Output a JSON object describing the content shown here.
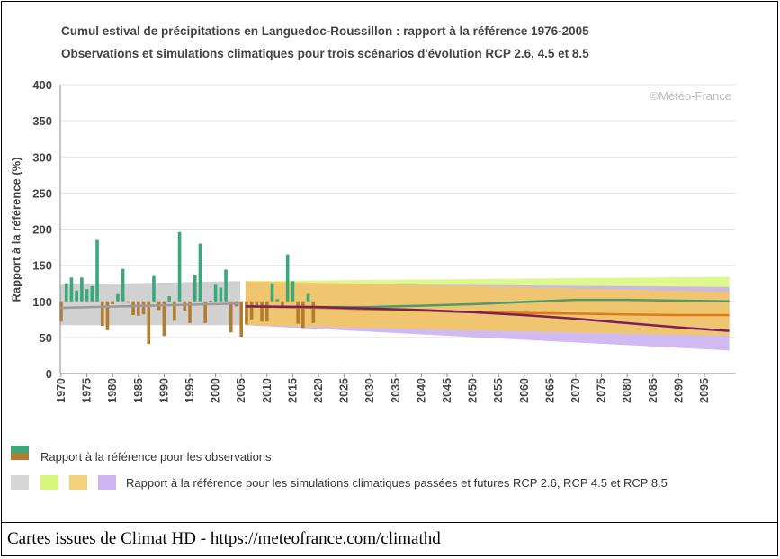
{
  "chart_data": {
    "type": "bar",
    "title": "Cumul estival de précipitations en Languedoc-Roussillon : rapport à la référence 1976-2005",
    "subtitle": "Observations et simulations climatiques pour trois scénarios d'évolution RCP 2.6, 4.5 et 8.5",
    "ylabel": "Rapport à la référence (%)",
    "ylim": [
      0,
      400
    ],
    "yticks": [
      0,
      50,
      100,
      150,
      200,
      250,
      300,
      350,
      400
    ],
    "xlim": [
      1970,
      2100
    ],
    "xticks": [
      1970,
      1975,
      1980,
      1985,
      1990,
      1995,
      2000,
      2005,
      2010,
      2015,
      2020,
      2025,
      2030,
      2035,
      2040,
      2045,
      2050,
      2055,
      2060,
      2065,
      2070,
      2075,
      2080,
      2085,
      2090,
      2095
    ],
    "baseline": 100,
    "grid": true,
    "watermark": "©Météo-France",
    "observations": {
      "name": "Rapport à la référence pour les observations",
      "color_above": "#3aa97a",
      "color_below": "#b27c2e",
      "years": [
        1970,
        1971,
        1972,
        1973,
        1974,
        1975,
        1976,
        1977,
        1978,
        1979,
        1980,
        1981,
        1982,
        1983,
        1984,
        1985,
        1986,
        1987,
        1988,
        1989,
        1990,
        1991,
        1992,
        1993,
        1994,
        1995,
        1996,
        1997,
        1998,
        1999,
        2000,
        2001,
        2002,
        2003,
        2004,
        2005,
        2006,
        2007,
        2008,
        2009,
        2010,
        2011,
        2012,
        2013,
        2014,
        2015,
        2016,
        2017,
        2018,
        2019
      ],
      "values": [
        72,
        125,
        133,
        115,
        133,
        117,
        121,
        185,
        66,
        60,
        96,
        110,
        145,
        98,
        81,
        80,
        82,
        41,
        135,
        88,
        52,
        107,
        73,
        196,
        87,
        70,
        137,
        180,
        70,
        101,
        123,
        119,
        144,
        57,
        93,
        51,
        68,
        75,
        93,
        72,
        72,
        125,
        103,
        93,
        165,
        128,
        69,
        63,
        110,
        70
      ]
    },
    "simulations_label": "Rapport à la référence pour les simulations climatiques passées et futures RCP 2.6, RCP 4.5 et RCP 8.5",
    "simulations": {
      "historical": {
        "color": "#cccccc",
        "x": [
          1970,
          2005
        ],
        "low": [
          67,
          67
        ],
        "high": [
          123,
          128
        ],
        "median": [
          91,
          97
        ]
      },
      "rcp26": {
        "color": "#d7f77a",
        "x": [
          2006,
          2100
        ],
        "low": [
          67,
          64
        ],
        "high": [
          128,
          134
        ],
        "median": [
          93,
          100
        ]
      },
      "rcp45": {
        "color": "#f5c75c",
        "x": [
          2006,
          2100
        ],
        "low": [
          67,
          52
        ],
        "high": [
          128,
          113
        ],
        "median": [
          93,
          81
        ]
      },
      "rcp85": {
        "color": "#c9aef0",
        "x": [
          2006,
          2100
        ],
        "low": [
          67,
          32
        ],
        "high": [
          125,
          120
        ],
        "median": [
          93,
          59
        ]
      },
      "median_lines": [
        {
          "name": "RCP 2.6",
          "color": "#4f9a6a",
          "x": [
            2006,
            2020,
            2030,
            2040,
            2050,
            2060,
            2070,
            2080,
            2090,
            2100
          ],
          "y": [
            93,
            92,
            92,
            94,
            96,
            99,
            102,
            102,
            101,
            100
          ]
        },
        {
          "name": "RCP 4.5",
          "color": "#e07a18",
          "x": [
            2006,
            2020,
            2030,
            2040,
            2050,
            2060,
            2070,
            2080,
            2090,
            2100
          ],
          "y": [
            93,
            91,
            89,
            87,
            85,
            84,
            83,
            82,
            81,
            81
          ]
        },
        {
          "name": "RCP 8.5",
          "color": "#7a1f5c",
          "x": [
            2006,
            2020,
            2030,
            2040,
            2050,
            2060,
            2070,
            2080,
            2090,
            2100
          ],
          "y": [
            93,
            92,
            90,
            88,
            85,
            81,
            76,
            70,
            64,
            59
          ]
        }
      ]
    },
    "legend_position": "bottom"
  },
  "footer": "Cartes issues de Climat HD - https://meteofrance.com/climathd"
}
